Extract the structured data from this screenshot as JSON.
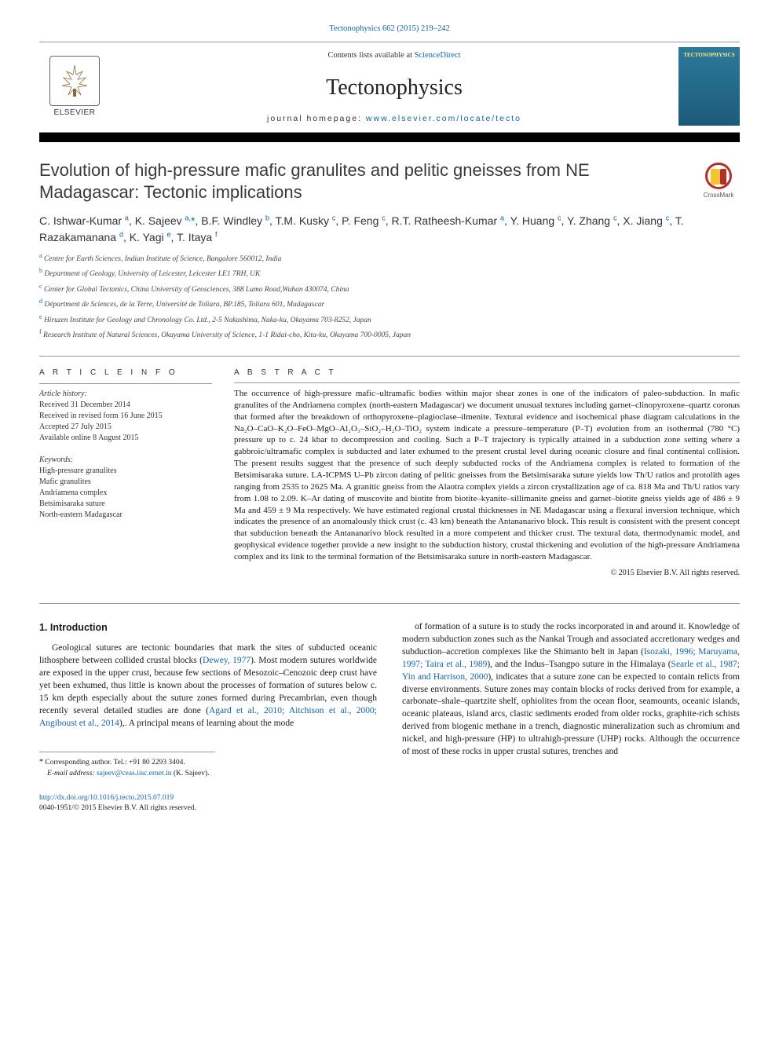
{
  "top_link": "Tectonophysics 662 (2015) 219–242",
  "header": {
    "contents_prefix": "Contents lists available at ",
    "contents_link": "ScienceDirect",
    "journal_name": "Tectonophysics",
    "homepage_prefix": "journal homepage: ",
    "homepage_url": "www.elsevier.com/locate/tecto",
    "elsevier_label": "ELSEVIER",
    "cover_label": "TECTONOPHYSICS"
  },
  "title": "Evolution of high-pressure mafic granulites and pelitic gneisses from NE Madagascar: Tectonic implications",
  "crossmark_label": "CrossMark",
  "authors_html": "C. Ishwar-Kumar <sup>a</sup>, K. Sajeev <sup>a,</sup><span class='star'>*</span>, B.F. Windley <sup>b</sup>, T.M. Kusky <sup>c</sup>, P. Feng <sup>c</sup>, R.T. Ratheesh-Kumar <sup>a</sup>, Y. Huang <sup>c</sup>, Y. Zhang <sup>c</sup>, X. Jiang <sup>c</sup>, T. Razakamanana <sup>d</sup>, K. Yagi <sup>e</sup>, T. Itaya <sup>f</sup>",
  "affiliations": [
    {
      "sup": "a",
      "text": "Centre for Earth Sciences, Indian Institute of Science, Bangalore 560012, India"
    },
    {
      "sup": "b",
      "text": "Department of Geology, University of Leicester, Leicester LE1 7RH, UK"
    },
    {
      "sup": "c",
      "text": "Center for Global Tectonics, China University of Geosciences, 388 Lumo Road,Wuhan 430074, China"
    },
    {
      "sup": "d",
      "text": "Départment de Sciences, de la Terre, Université de Toliara, BP.185, Toliara 601, Madagascar"
    },
    {
      "sup": "e",
      "text": "Hiruzen Institute for Geology and Chronology Co. Ltd., 2-5 Nakashima, Naka-ku, Okayama 703-8252, Japan"
    },
    {
      "sup": "f",
      "text": "Research Institute of Natural Sciences, Okayama University of Science, 1-1 Ridai-cho, Kita-ku, Okayama 700-0005, Japan"
    }
  ],
  "article_info": {
    "label": "A R T I C L E   I N F O",
    "history_label": "Article history:",
    "received": "Received 31 December 2014",
    "revised": "Received in revised form 16 June 2015",
    "accepted": "Accepted 27 July 2015",
    "online": "Available online 8 August 2015",
    "keywords_label": "Keywords:",
    "keywords": [
      "High-pressure granulites",
      "Mafic granulites",
      "Andriamena complex",
      "Betsimisaraka suture",
      "North-eastern Madagascar"
    ]
  },
  "abstract": {
    "label": "A B S T R A C T",
    "text": "The occurrence of high-pressure mafic–ultramafic bodies within major shear zones is one of the indicators of paleo-subduction. In mafic granulites of the Andriamena complex (north-eastern Madagascar) we document unusual textures including garnet–clinopyroxene–quartz coronas that formed after the breakdown of orthopyroxene–plagioclase–ilmenite. Textural evidence and isochemical phase diagram calculations in the Na₂O–CaO–K₂O–FeO–MgO–Al₂O₃–SiO₂–H₂O–TiO₂ system indicate a pressure–temperature (P–T) evolution from an isothermal (780 °C) pressure up to c. 24 kbar to decompression and cooling. Such a P–T trajectory is typically attained in a subduction zone setting where a gabbroic/ultramafic complex is subducted and later exhumed to the present crustal level during oceanic closure and final continental collision. The present results suggest that the presence of such deeply subducted rocks of the Andriamena complex is related to formation of the Betsimisaraka suture. LA-ICPMS U–Pb zircon dating of pelitic gneisses from the Betsimisaraka suture yields low Th/U ratios and protolith ages ranging from 2535 to 2625 Ma. A granitic gneiss from the Alaotra complex yields a zircon crystallization age of ca. 818 Ma and Th/U ratios vary from 1.08 to 2.09. K–Ar dating of muscovite and biotite from biotite–kyanite–sillimanite gneiss and garnet–biotite gneiss yields age of 486 ± 9 Ma and 459 ± 9 Ma respectively. We have estimated regional crustal thicknesses in NE Madagascar using a flexural inversion technique, which indicates the presence of an anomalously thick crust (c. 43 km) beneath the Antananarivo block. This result is consistent with the present concept that subduction beneath the Antananarivo block resulted in a more competent and thicker crust. The textural data, thermodynamic model, and geophysical evidence together provide a new insight to the subduction history, crustal thickening and evolution of the high-pressure Andriamena complex and its link to the terminal formation of the Betsimisaraka suture in north-eastern Madagascar.",
    "copyright": "© 2015 Elsevier B.V. All rights reserved."
  },
  "intro": {
    "heading": "1. Introduction",
    "col1": "Geological sutures are tectonic boundaries that mark the sites of subducted oceanic lithosphere between collided crustal blocks (<span class='link'>Dewey, 1977</span>). Most modern sutures worldwide are exposed in the upper crust, because few sections of Mesozoic–Cenozoic deep crust have yet been exhumed, thus little is known about the processes of formation of sutures below c. 15 km depth especially about the suture zones formed during Precambrian, even though recently several detailed studies are done (<span class='link'>Agard et al., 2010; Aitchison et al., 2000; Angiboust et al., 2014</span>),. A principal means of learning about the mode",
    "col2": "of formation of a suture is to study the rocks incorporated in and around it. Knowledge of modern subduction zones such as the Nankai Trough and associated accretionary wedges and subduction–accretion complexes like the Shimanto belt in Japan (<span class='link'>Isozaki, 1996; Maruyama, 1997; Taira et al., 1989</span>), and the Indus–Tsangpo suture in the Himalaya (<span class='link'>Searle et al., 1987; Yin and Harrison, 2000</span>), indicates that a suture zone can be expected to contain relicts from diverse environments. Suture zones may contain blocks of rocks derived from for example, a carbonate–shale–quartzite shelf, ophiolites from the ocean floor, seamounts, oceanic islands, oceanic plateaus, island arcs, clastic sediments eroded from older rocks, graphite-rich schists derived from biogenic methane in a trench, diagnostic mineralization such as chromium and nickel, and high-pressure (HP) to ultrahigh-pressure (UHP) rocks. Although the occurrence of most of these rocks in upper crustal sutures, trenches and"
  },
  "footer": {
    "corr_label": "Corresponding author. Tel.: +91 80 2293 3404.",
    "email_label": "E-mail address:",
    "email": "sajeev@ceas.iisc.ernet.in",
    "email_person": "(K. Sajeev).",
    "doi": "http://dx.doi.org/10.1016/j.tecto.2015.07.019",
    "issn_line": "0040-1951/© 2015 Elsevier B.V. All rights reserved."
  }
}
